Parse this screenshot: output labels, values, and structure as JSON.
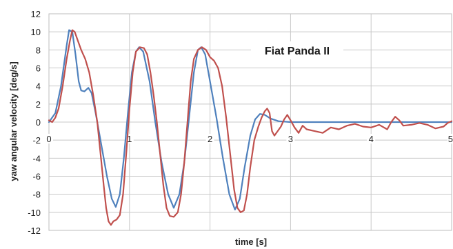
{
  "chart_data": {
    "type": "line",
    "xlabel": "time [s]",
    "ylabel": "yaw angular velocity [deg/s]",
    "xlim": [
      0,
      5
    ],
    "ylim": [
      -12,
      12
    ],
    "x_ticks": [
      0,
      1,
      2,
      3,
      4,
      5
    ],
    "y_ticks": [
      12,
      10,
      8,
      6,
      4,
      2,
      0,
      -2,
      -4,
      -6,
      -8,
      -10,
      -12
    ],
    "grid": true,
    "annotation": "Fiat Panda II",
    "series": [
      {
        "color": "#4f81bd",
        "points": [
          [
            0.0,
            0.0
          ],
          [
            0.08,
            1.0
          ],
          [
            0.15,
            4.0
          ],
          [
            0.22,
            8.5
          ],
          [
            0.25,
            10.2
          ],
          [
            0.29,
            10.0
          ],
          [
            0.33,
            7.5
          ],
          [
            0.37,
            4.5
          ],
          [
            0.4,
            3.5
          ],
          [
            0.44,
            3.4
          ],
          [
            0.49,
            3.8
          ],
          [
            0.53,
            3.2
          ],
          [
            0.58,
            1.0
          ],
          [
            0.65,
            -2.5
          ],
          [
            0.72,
            -6.0
          ],
          [
            0.78,
            -8.5
          ],
          [
            0.83,
            -9.4
          ],
          [
            0.88,
            -8.0
          ],
          [
            0.93,
            -4.0
          ],
          [
            0.98,
            1.0
          ],
          [
            1.03,
            5.5
          ],
          [
            1.08,
            7.8
          ],
          [
            1.12,
            8.3
          ],
          [
            1.17,
            7.8
          ],
          [
            1.25,
            4.5
          ],
          [
            1.32,
            0.0
          ],
          [
            1.4,
            -4.5
          ],
          [
            1.48,
            -8.0
          ],
          [
            1.55,
            -9.5
          ],
          [
            1.62,
            -8.0
          ],
          [
            1.68,
            -4.5
          ],
          [
            1.74,
            0.5
          ],
          [
            1.8,
            5.5
          ],
          [
            1.85,
            8.0
          ],
          [
            1.89,
            8.3
          ],
          [
            1.94,
            7.5
          ],
          [
            2.0,
            4.5
          ],
          [
            2.08,
            0.5
          ],
          [
            2.16,
            -4.0
          ],
          [
            2.24,
            -8.0
          ],
          [
            2.31,
            -9.7
          ],
          [
            2.37,
            -8.5
          ],
          [
            2.43,
            -5.0
          ],
          [
            2.5,
            -1.5
          ],
          [
            2.56,
            0.3
          ],
          [
            2.62,
            0.9
          ],
          [
            2.68,
            0.8
          ],
          [
            2.75,
            0.4
          ],
          [
            2.85,
            0.1
          ],
          [
            3.0,
            0.0
          ],
          [
            3.5,
            0.0
          ],
          [
            4.0,
            0.0
          ],
          [
            4.5,
            0.0
          ],
          [
            5.0,
            0.0
          ]
        ]
      },
      {
        "color": "#c0504d",
        "points": [
          [
            0.0,
            0.2
          ],
          [
            0.04,
            0.0
          ],
          [
            0.08,
            0.5
          ],
          [
            0.12,
            1.5
          ],
          [
            0.17,
            4.0
          ],
          [
            0.22,
            7.0
          ],
          [
            0.26,
            9.0
          ],
          [
            0.29,
            10.2
          ],
          [
            0.32,
            10.0
          ],
          [
            0.36,
            9.0
          ],
          [
            0.4,
            8.0
          ],
          [
            0.45,
            7.0
          ],
          [
            0.5,
            5.5
          ],
          [
            0.55,
            3.0
          ],
          [
            0.6,
            0.0
          ],
          [
            0.64,
            -3.5
          ],
          [
            0.68,
            -7.0
          ],
          [
            0.71,
            -9.5
          ],
          [
            0.74,
            -11.0
          ],
          [
            0.77,
            -11.4
          ],
          [
            0.8,
            -11.0
          ],
          [
            0.84,
            -10.8
          ],
          [
            0.88,
            -10.3
          ],
          [
            0.92,
            -8.0
          ],
          [
            0.96,
            -3.5
          ],
          [
            1.0,
            1.5
          ],
          [
            1.04,
            5.5
          ],
          [
            1.08,
            7.8
          ],
          [
            1.13,
            8.3
          ],
          [
            1.18,
            8.2
          ],
          [
            1.22,
            7.5
          ],
          [
            1.26,
            5.5
          ],
          [
            1.3,
            3.0
          ],
          [
            1.34,
            0.0
          ],
          [
            1.38,
            -3.5
          ],
          [
            1.42,
            -7.0
          ],
          [
            1.46,
            -9.5
          ],
          [
            1.5,
            -10.4
          ],
          [
            1.55,
            -10.5
          ],
          [
            1.6,
            -10.0
          ],
          [
            1.64,
            -8.0
          ],
          [
            1.68,
            -4.5
          ],
          [
            1.72,
            0.0
          ],
          [
            1.76,
            4.5
          ],
          [
            1.8,
            7.0
          ],
          [
            1.85,
            8.0
          ],
          [
            1.9,
            8.3
          ],
          [
            1.95,
            8.0
          ],
          [
            2.0,
            7.2
          ],
          [
            2.05,
            6.8
          ],
          [
            2.1,
            6.0
          ],
          [
            2.15,
            4.0
          ],
          [
            2.2,
            0.5
          ],
          [
            2.25,
            -3.5
          ],
          [
            2.3,
            -7.5
          ],
          [
            2.34,
            -9.5
          ],
          [
            2.38,
            -10.0
          ],
          [
            2.42,
            -9.8
          ],
          [
            2.46,
            -8.0
          ],
          [
            2.5,
            -5.0
          ],
          [
            2.55,
            -2.0
          ],
          [
            2.6,
            -0.5
          ],
          [
            2.64,
            0.5
          ],
          [
            2.68,
            1.2
          ],
          [
            2.71,
            1.5
          ],
          [
            2.74,
            1.0
          ],
          [
            2.77,
            -1.0
          ],
          [
            2.8,
            -1.5
          ],
          [
            2.84,
            -1.0
          ],
          [
            2.88,
            -0.5
          ],
          [
            2.92,
            0.3
          ],
          [
            2.96,
            0.8
          ],
          [
            3.0,
            0.2
          ],
          [
            3.05,
            -0.6
          ],
          [
            3.1,
            -1.2
          ],
          [
            3.15,
            -0.4
          ],
          [
            3.2,
            -0.8
          ],
          [
            3.3,
            -1.0
          ],
          [
            3.4,
            -1.2
          ],
          [
            3.5,
            -0.6
          ],
          [
            3.6,
            -0.8
          ],
          [
            3.7,
            -0.4
          ],
          [
            3.8,
            -0.2
          ],
          [
            3.9,
            -0.5
          ],
          [
            4.0,
            -0.6
          ],
          [
            4.1,
            -0.3
          ],
          [
            4.2,
            -0.8
          ],
          [
            4.25,
            0.0
          ],
          [
            4.3,
            0.6
          ],
          [
            4.35,
            0.2
          ],
          [
            4.4,
            -0.4
          ],
          [
            4.5,
            -0.3
          ],
          [
            4.6,
            -0.1
          ],
          [
            4.7,
            -0.3
          ],
          [
            4.8,
            -0.7
          ],
          [
            4.9,
            -0.5
          ],
          [
            4.95,
            -0.1
          ],
          [
            5.0,
            0.1
          ]
        ]
      }
    ]
  }
}
